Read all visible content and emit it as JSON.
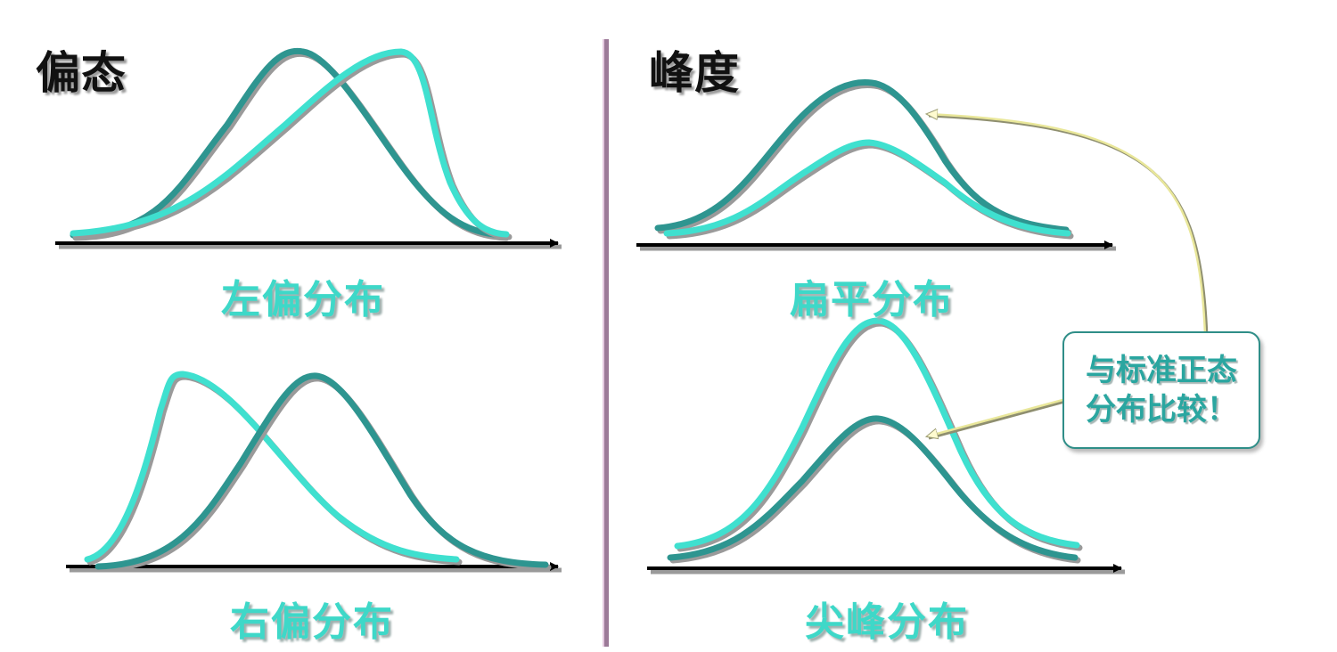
{
  "panels": {
    "skewness": {
      "heading": "偏态"
    },
    "kurtosis": {
      "heading": "峰度"
    }
  },
  "captions": {
    "left_skew": "左偏分布",
    "right_skew": "右偏分布",
    "flat": "扁平分布",
    "peaked": "尖峰分布"
  },
  "callout": {
    "line1": "与标准正态",
    "line2": "分布比较！"
  },
  "colors": {
    "standard_curve": "#2e9590",
    "compared_curve": "#3fe0cf",
    "axis": "#000000",
    "divider": "#c9a3c4",
    "pointer": "#e7e79a"
  }
}
